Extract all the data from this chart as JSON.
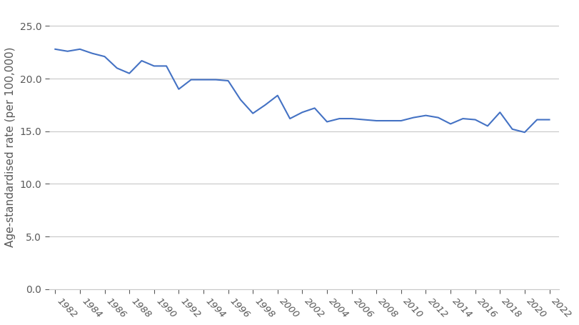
{
  "years": [
    1982,
    1983,
    1984,
    1985,
    1986,
    1987,
    1988,
    1989,
    1990,
    1991,
    1992,
    1993,
    1994,
    1995,
    1996,
    1997,
    1998,
    1999,
    2000,
    2001,
    2002,
    2003,
    2004,
    2005,
    2006,
    2007,
    2008,
    2009,
    2010,
    2011,
    2012,
    2013,
    2014,
    2015,
    2016,
    2017,
    2018,
    2019,
    2020,
    2021,
    2022
  ],
  "values": [
    22.8,
    22.6,
    22.8,
    22.4,
    22.1,
    21.0,
    20.5,
    21.7,
    21.2,
    21.2,
    19.0,
    19.9,
    19.9,
    19.9,
    19.8,
    18.0,
    16.7,
    17.5,
    18.4,
    16.2,
    16.8,
    17.2,
    15.9,
    16.2,
    16.2,
    16.1,
    16.0,
    16.0,
    16.0,
    16.3,
    16.5,
    16.3,
    15.7,
    16.2,
    16.1,
    15.5,
    16.8,
    15.2,
    14.9,
    16.1,
    16.1
  ],
  "line_color": "#4472C4",
  "line_width": 1.5,
  "ylabel": "Age-standardised rate (per 100,000)",
  "yticks": [
    0.0,
    5.0,
    10.0,
    15.0,
    20.0,
    25.0
  ],
  "xtick_step": 2,
  "ylim": [
    0.0,
    27.0
  ],
  "xlim": [
    1981.5,
    2022.8
  ],
  "grid_color": "#C8C8C8",
  "bg_color": "#FFFFFF",
  "tick_label_color": "#595959",
  "ylabel_fontsize": 11,
  "tick_fontsize": 9.5,
  "ytick_fontsize": 10
}
